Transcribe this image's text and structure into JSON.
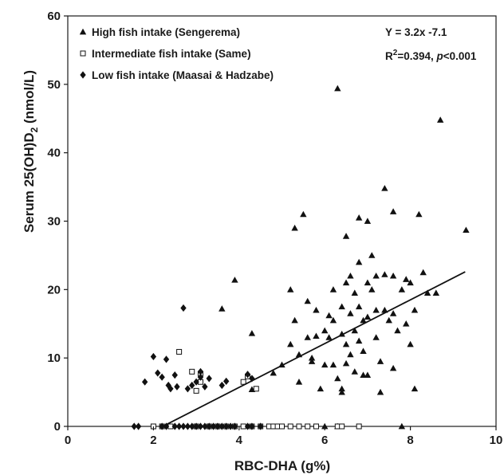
{
  "chart_data": {
    "type": "scatter",
    "xlabel": "RBC-DHA (g%)",
    "ylabel_main": "Serum 25(OH)D",
    "ylabel_sub": "2",
    "ylabel_unit": " (nmol/L)",
    "xlim": [
      0,
      10
    ],
    "ylim": [
      0,
      60
    ],
    "xticks": [
      "0",
      "2",
      "4",
      "6",
      "8",
      "10"
    ],
    "yticks": [
      "0",
      "10",
      "20",
      "30",
      "40",
      "50",
      "60"
    ],
    "grid": false,
    "legend_position": "top-left",
    "regression": {
      "equation": "Y = 3.2x -7.1",
      "r2_prefix": "R",
      "r2_sup": "2",
      "r2_value": "=0.394, ",
      "p_label": "p",
      "p_value": "<0.001",
      "x_range": [
        2.22,
        9.28
      ]
    },
    "series": [
      {
        "name": "High fish intake (Sengerema)",
        "marker": "triangle",
        "points": [
          [
            3.6,
            17.2
          ],
          [
            3.9,
            21.4
          ],
          [
            4.3,
            13.6
          ],
          [
            4.3,
            5.4
          ],
          [
            4.8,
            7.8
          ],
          [
            5.0,
            9.0
          ],
          [
            5.2,
            12.0
          ],
          [
            5.2,
            20.0
          ],
          [
            5.3,
            29.0
          ],
          [
            5.3,
            15.5
          ],
          [
            5.4,
            10.5
          ],
          [
            5.4,
            6.5
          ],
          [
            5.5,
            31.0
          ],
          [
            5.6,
            18.3
          ],
          [
            5.6,
            13.0
          ],
          [
            5.7,
            10.0
          ],
          [
            5.7,
            9.5
          ],
          [
            5.8,
            17.0
          ],
          [
            5.8,
            13.2
          ],
          [
            5.9,
            5.5
          ],
          [
            6.0,
            14.0
          ],
          [
            6.0,
            9.0
          ],
          [
            6.1,
            16.2
          ],
          [
            6.1,
            13.0
          ],
          [
            6.2,
            20.0
          ],
          [
            6.2,
            15.5
          ],
          [
            6.2,
            9.0
          ],
          [
            6.3,
            49.4
          ],
          [
            6.3,
            7.0
          ],
          [
            6.4,
            17.5
          ],
          [
            6.4,
            13.5
          ],
          [
            6.4,
            5.5
          ],
          [
            6.4,
            5.0
          ],
          [
            6.5,
            27.8
          ],
          [
            6.5,
            21.0
          ],
          [
            6.5,
            12.0
          ],
          [
            6.5,
            9.2
          ],
          [
            6.6,
            22.0
          ],
          [
            6.6,
            16.5
          ],
          [
            6.6,
            10.5
          ],
          [
            6.7,
            19.5
          ],
          [
            6.7,
            14.0
          ],
          [
            6.7,
            8.0
          ],
          [
            6.8,
            30.5
          ],
          [
            6.8,
            24.0
          ],
          [
            6.8,
            17.5
          ],
          [
            6.8,
            12.5
          ],
          [
            6.9,
            15.5
          ],
          [
            6.9,
            11.0
          ],
          [
            6.9,
            7.5
          ],
          [
            7.0,
            30.0
          ],
          [
            7.0,
            21.0
          ],
          [
            7.0,
            16.0
          ],
          [
            7.0,
            7.5
          ],
          [
            7.1,
            25.0
          ],
          [
            7.1,
            20.0
          ],
          [
            7.2,
            22.0
          ],
          [
            7.2,
            17.0
          ],
          [
            7.2,
            13.0
          ],
          [
            7.3,
            9.5
          ],
          [
            7.3,
            5.0
          ],
          [
            7.4,
            34.8
          ],
          [
            7.4,
            22.2
          ],
          [
            7.4,
            17.0
          ],
          [
            7.5,
            15.5
          ],
          [
            7.6,
            31.4
          ],
          [
            7.6,
            22.0
          ],
          [
            7.6,
            16.5
          ],
          [
            7.6,
            8.5
          ],
          [
            7.7,
            14.0
          ],
          [
            7.8,
            20.0
          ],
          [
            7.9,
            21.5
          ],
          [
            7.9,
            15.0
          ],
          [
            8.0,
            21.0
          ],
          [
            8.0,
            12.0
          ],
          [
            8.1,
            5.5
          ],
          [
            8.1,
            17.0
          ],
          [
            8.2,
            31.0
          ],
          [
            8.3,
            22.5
          ],
          [
            8.4,
            19.5
          ],
          [
            8.6,
            19.5
          ],
          [
            8.7,
            44.8
          ],
          [
            9.3,
            28.7
          ],
          [
            6.0,
            0.0
          ],
          [
            6.3,
            0.0
          ],
          [
            7.8,
            0.0
          ]
        ]
      },
      {
        "name": "Intermediate fish intake (Same)",
        "marker": "square",
        "points": [
          [
            2.0,
            0.0
          ],
          [
            2.2,
            0.0
          ],
          [
            2.4,
            0.0
          ],
          [
            2.6,
            10.9
          ],
          [
            2.9,
            8.0
          ],
          [
            3.0,
            5.2
          ],
          [
            3.1,
            7.7
          ],
          [
            3.1,
            6.5
          ],
          [
            4.1,
            6.5
          ],
          [
            4.2,
            7.3
          ],
          [
            4.4,
            5.5
          ],
          [
            3.0,
            0.0
          ],
          [
            3.3,
            0.0
          ],
          [
            3.5,
            0.0
          ],
          [
            3.7,
            0.0
          ],
          [
            3.9,
            0.0
          ],
          [
            4.1,
            0.0
          ],
          [
            4.3,
            0.0
          ],
          [
            4.5,
            0.0
          ],
          [
            4.7,
            0.0
          ],
          [
            4.8,
            0.0
          ],
          [
            4.9,
            0.0
          ],
          [
            5.0,
            0.0
          ],
          [
            5.2,
            0.0
          ],
          [
            5.4,
            0.0
          ],
          [
            5.6,
            0.0
          ],
          [
            5.8,
            0.0
          ],
          [
            6.3,
            0.0
          ],
          [
            6.4,
            0.0
          ],
          [
            6.8,
            0.0
          ]
        ]
      },
      {
        "name": "Low fish intake (Maasai & Hadzabe)",
        "marker": "diamond",
        "points": [
          [
            1.8,
            6.5
          ],
          [
            2.0,
            10.2
          ],
          [
            2.1,
            7.8
          ],
          [
            2.2,
            7.2
          ],
          [
            2.3,
            9.8
          ],
          [
            2.35,
            6.0
          ],
          [
            2.4,
            5.5
          ],
          [
            2.5,
            7.5
          ],
          [
            2.55,
            5.8
          ],
          [
            2.7,
            17.3
          ],
          [
            2.8,
            5.5
          ],
          [
            2.9,
            6.0
          ],
          [
            3.0,
            6.5
          ],
          [
            3.1,
            8.0
          ],
          [
            3.1,
            7.2
          ],
          [
            3.2,
            5.8
          ],
          [
            3.3,
            7.0
          ],
          [
            3.6,
            6.0
          ],
          [
            3.7,
            6.6
          ],
          [
            4.2,
            7.6
          ],
          [
            4.3,
            7.0
          ],
          [
            1.55,
            0.0
          ],
          [
            1.65,
            0.0
          ],
          [
            2.2,
            0.0
          ],
          [
            2.3,
            0.0
          ],
          [
            2.5,
            0.0
          ],
          [
            2.6,
            0.0
          ],
          [
            2.7,
            0.0
          ],
          [
            2.8,
            0.0
          ],
          [
            2.9,
            0.0
          ],
          [
            3.0,
            0.0
          ],
          [
            3.1,
            0.0
          ],
          [
            3.2,
            0.0
          ],
          [
            3.3,
            0.0
          ],
          [
            3.4,
            0.0
          ],
          [
            3.5,
            0.0
          ],
          [
            3.6,
            0.0
          ],
          [
            3.7,
            0.0
          ],
          [
            3.8,
            0.0
          ],
          [
            3.9,
            0.0
          ],
          [
            4.2,
            0.0
          ],
          [
            4.3,
            0.0
          ],
          [
            4.5,
            0.0
          ]
        ]
      }
    ]
  }
}
